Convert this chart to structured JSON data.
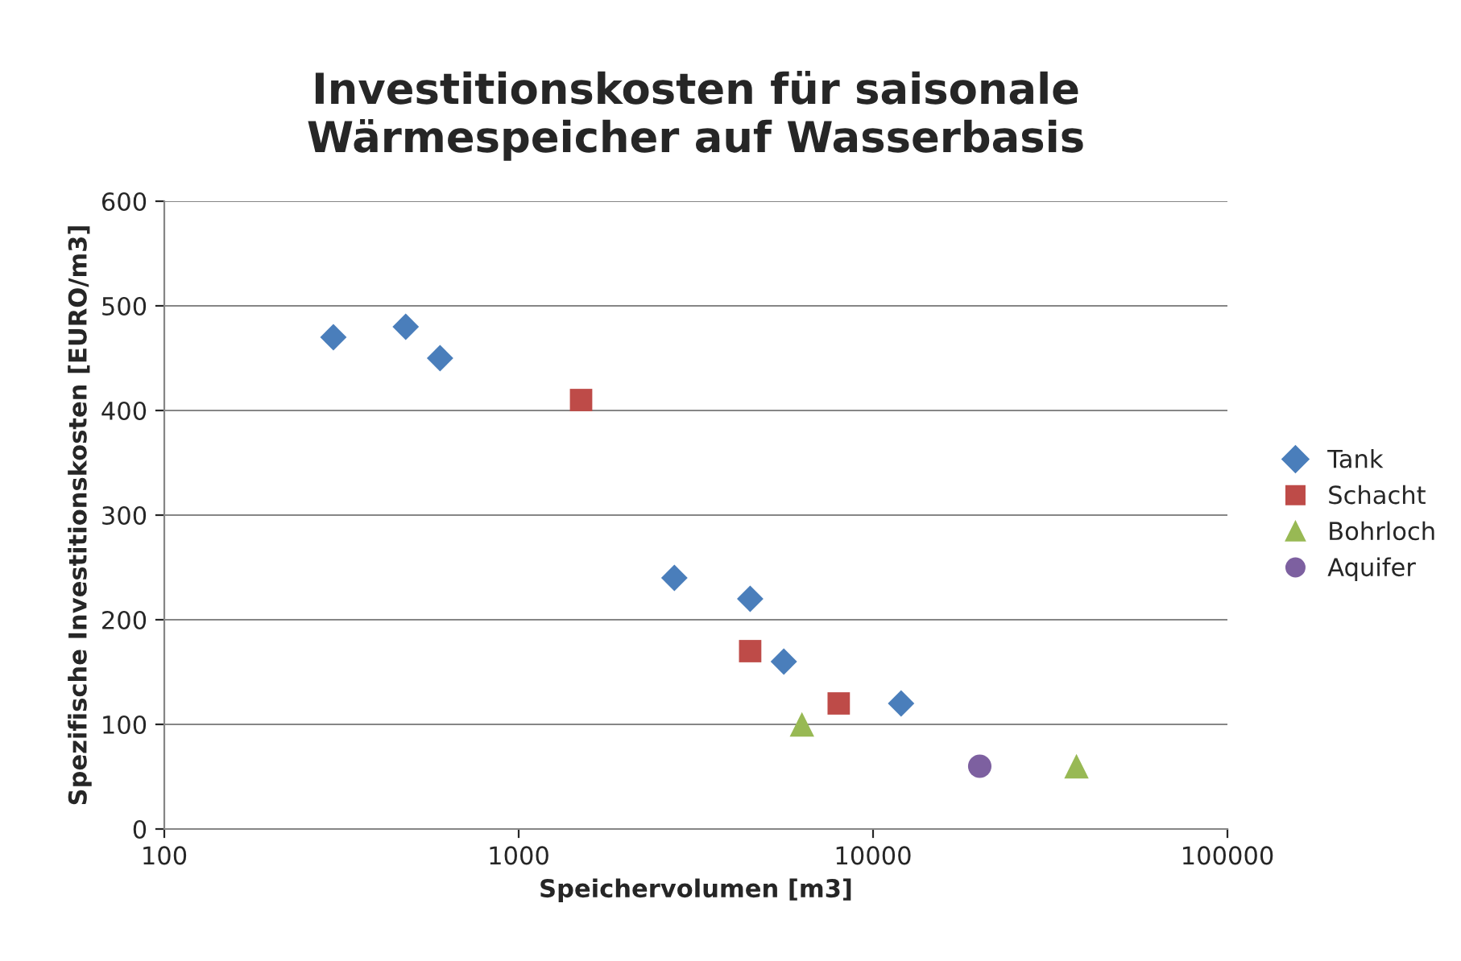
{
  "chart_data": {
    "type": "scatter",
    "title": "Investitionskosten für saisonale\nWärmespeicher auf Wasserbasis",
    "xlabel": "Speichervolumen [m3]",
    "ylabel": "Spezifische Investitionskosten [EURO/m3]",
    "log": "x",
    "xlim": [
      100,
      100000
    ],
    "xticks": [
      100,
      1000,
      10000,
      100000
    ],
    "ylim": [
      0,
      600
    ],
    "yticks": [
      0,
      100,
      200,
      300,
      400,
      500,
      600
    ],
    "grid": "y",
    "legend": "right",
    "series": [
      {
        "name": "Tank",
        "color": "#4a7ebb",
        "marker": "diamond",
        "x": [
          300,
          480,
          600,
          2750,
          4500,
          5600,
          12000
        ],
        "values": [
          470,
          480,
          450,
          240,
          220,
          160,
          120
        ]
      },
      {
        "name": "Schacht",
        "color": "#be4b48",
        "marker": "square",
        "x": [
          1500,
          4500,
          8000
        ],
        "values": [
          410,
          170,
          120
        ]
      },
      {
        "name": "Bohrloch",
        "color": "#98b954",
        "marker": "triangle",
        "x": [
          6300,
          37500
        ],
        "values": [
          100,
          60
        ]
      },
      {
        "name": "Aquifer",
        "color": "#7d60a0",
        "marker": "circle",
        "x": [
          20000
        ],
        "values": [
          60
        ]
      }
    ]
  }
}
